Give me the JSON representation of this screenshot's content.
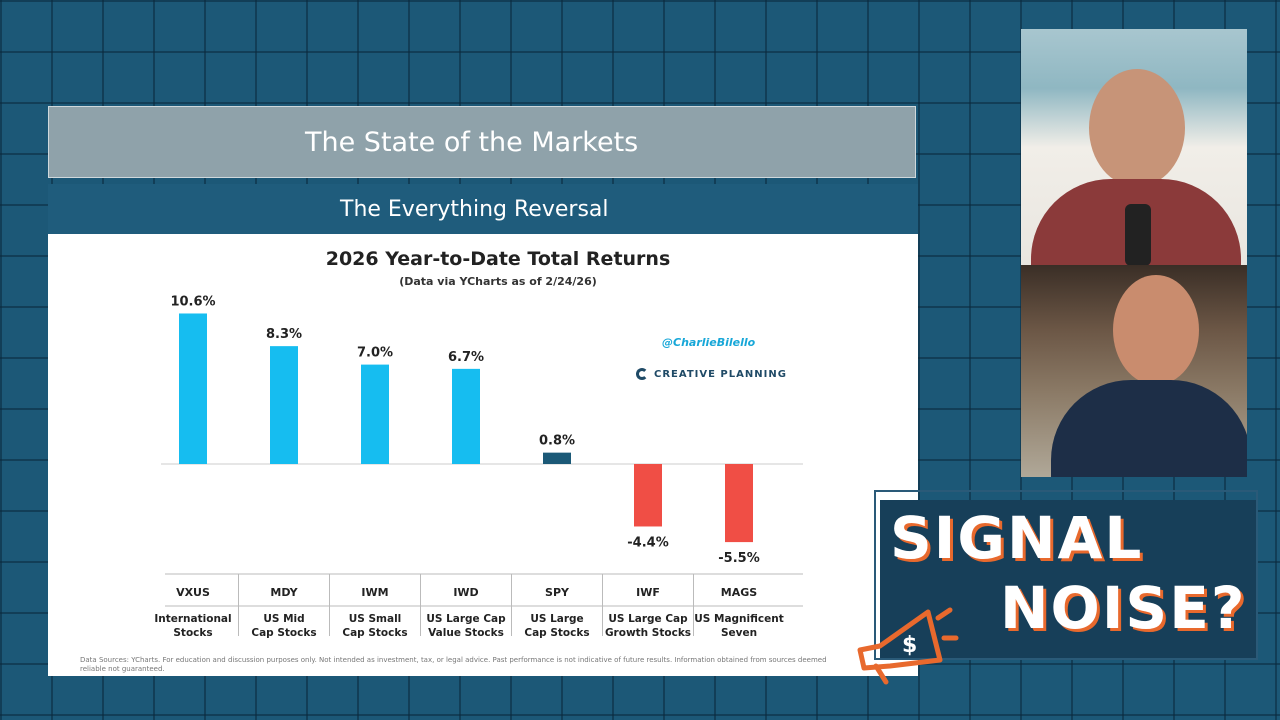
{
  "slide": {
    "header": "The State of the Markets",
    "band": "The Everything Reversal",
    "watermark": "@CharlieBilello",
    "brand": "CREATIVE PLANNING",
    "footnote": "Data Sources: YCharts. For education and discussion purposes only. Not intended as investment, tax, or legal advice. Past performance is not indicative of future results. Information obtained from sources deemed reliable not guaranteed."
  },
  "logo": {
    "line1": "SIGNAL",
    "line2": "NOISE?"
  },
  "colors": {
    "positive": "#16bdf0",
    "neutral": "#1b5977",
    "negative": "#f04e45",
    "band": "#1f5c7c"
  },
  "chart_data": {
    "type": "bar",
    "title": "2026 Year-to-Date Total Returns",
    "subtitle": "(Data via YCharts as of 2/24/26)",
    "categories": [
      "VXUS",
      "MDY",
      "IWM",
      "IWD",
      "SPY",
      "IWF",
      "MAGS"
    ],
    "descriptions": [
      "International Stocks",
      "US Mid Cap Stocks",
      "US Small Cap Stocks",
      "US Large Cap Value Stocks",
      "US Large Cap Stocks",
      "US Large Cap Growth Stocks",
      "US Magnificent Seven"
    ],
    "values": [
      10.6,
      8.3,
      7.0,
      6.7,
      0.8,
      -4.4,
      -5.5
    ],
    "labels": [
      "10.6%",
      "8.3%",
      "7.0%",
      "6.7%",
      "0.8%",
      "-4.4%",
      "-5.5%"
    ],
    "ylim": [
      -6,
      11
    ],
    "grid": false
  }
}
